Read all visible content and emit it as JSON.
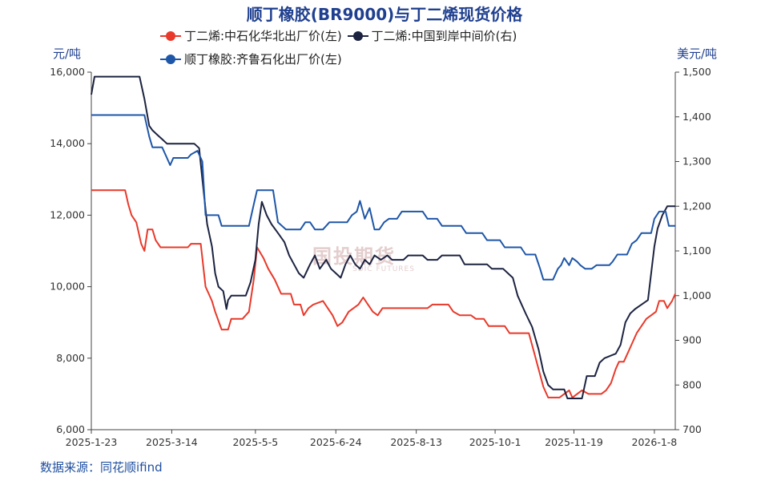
{
  "chart_data": {
    "type": "line",
    "title": "顺丁橡胶(BR9000)与丁二烯现货价格",
    "left_unit": "元/吨",
    "right_unit": "美元/吨",
    "source": "数据来源：同花顺ifind",
    "watermark_cn": "国投期货",
    "watermark_en": "SDIC FUTURES",
    "x_start": "2025-01-23",
    "x_end": "2026-01-21",
    "x_ticks": [
      "2025-1-23",
      "2025-3-14",
      "2025-5-5",
      "2025-6-24",
      "2025-8-13",
      "2025-10-1",
      "2025-11-19",
      "2026-1-8"
    ],
    "y_left": {
      "min": 6000,
      "max": 16000,
      "ticks": [
        "6,000",
        "8,000",
        "10,000",
        "12,000",
        "14,000",
        "16,000"
      ]
    },
    "y_right": {
      "min": 700,
      "max": 1500,
      "ticks": [
        "700",
        "800",
        "900",
        "1,000",
        "1,100",
        "1,200",
        "1,300",
        "1,400",
        "1,500"
      ]
    },
    "series": [
      {
        "name": "丁二烯:中石化华北出厂价(左)",
        "color": "#e8392a",
        "axis": "left",
        "points": [
          [
            "2025-01-23",
            12700
          ],
          [
            "2025-02-13",
            12700
          ],
          [
            "2025-02-15",
            12300
          ],
          [
            "2025-02-17",
            12000
          ],
          [
            "2025-02-20",
            11800
          ],
          [
            "2025-02-23",
            11200
          ],
          [
            "2025-02-25",
            11000
          ],
          [
            "2025-02-27",
            11600
          ],
          [
            "2025-03-02",
            11600
          ],
          [
            "2025-03-04",
            11300
          ],
          [
            "2025-03-07",
            11100
          ],
          [
            "2025-03-24",
            11100
          ],
          [
            "2025-03-26",
            11200
          ],
          [
            "2025-04-01",
            11200
          ],
          [
            "2025-04-04",
            10000
          ],
          [
            "2025-04-08",
            9600
          ],
          [
            "2025-04-10",
            9300
          ],
          [
            "2025-04-14",
            8800
          ],
          [
            "2025-04-18",
            8800
          ],
          [
            "2025-04-20",
            9100
          ],
          [
            "2025-04-27",
            9100
          ],
          [
            "2025-05-01",
            9300
          ],
          [
            "2025-05-04",
            10200
          ],
          [
            "2025-05-06",
            11100
          ],
          [
            "2025-05-10",
            10800
          ],
          [
            "2025-05-13",
            10500
          ],
          [
            "2025-05-17",
            10200
          ],
          [
            "2025-05-21",
            9800
          ],
          [
            "2025-05-27",
            9800
          ],
          [
            "2025-05-29",
            9500
          ],
          [
            "2025-06-02",
            9500
          ],
          [
            "2025-06-04",
            9200
          ],
          [
            "2025-06-07",
            9400
          ],
          [
            "2025-06-10",
            9500
          ],
          [
            "2025-06-16",
            9600
          ],
          [
            "2025-06-19",
            9400
          ],
          [
            "2025-06-22",
            9200
          ],
          [
            "2025-06-25",
            8900
          ],
          [
            "2025-06-28",
            9000
          ],
          [
            "2025-07-02",
            9300
          ],
          [
            "2025-07-05",
            9400
          ],
          [
            "2025-07-08",
            9500
          ],
          [
            "2025-07-11",
            9700
          ],
          [
            "2025-07-14",
            9500
          ],
          [
            "2025-07-17",
            9300
          ],
          [
            "2025-07-20",
            9200
          ],
          [
            "2025-07-23",
            9400
          ],
          [
            "2025-08-20",
            9400
          ],
          [
            "2025-08-23",
            9500
          ],
          [
            "2025-09-02",
            9500
          ],
          [
            "2025-09-05",
            9300
          ],
          [
            "2025-09-09",
            9200
          ],
          [
            "2025-09-16",
            9200
          ],
          [
            "2025-09-19",
            9100
          ],
          [
            "2025-09-24",
            9100
          ],
          [
            "2025-09-27",
            8900
          ],
          [
            "2025-10-07",
            8900
          ],
          [
            "2025-10-10",
            8700
          ],
          [
            "2025-10-15",
            8700
          ],
          [
            "2025-10-22",
            8700
          ],
          [
            "2025-10-25",
            8200
          ],
          [
            "2025-10-28",
            7700
          ],
          [
            "2025-10-31",
            7200
          ],
          [
            "2025-11-03",
            6900
          ],
          [
            "2025-11-10",
            6900
          ],
          [
            "2025-11-13",
            7000
          ],
          [
            "2025-11-16",
            7100
          ],
          [
            "2025-11-18",
            6900
          ],
          [
            "2025-11-21",
            7000
          ],
          [
            "2025-11-24",
            7100
          ],
          [
            "2025-11-28",
            7000
          ],
          [
            "2025-12-06",
            7000
          ],
          [
            "2025-12-09",
            7100
          ],
          [
            "2025-12-12",
            7300
          ],
          [
            "2025-12-15",
            7700
          ],
          [
            "2025-12-17",
            7900
          ],
          [
            "2025-12-20",
            7900
          ],
          [
            "2025-12-23",
            8200
          ],
          [
            "2025-12-25",
            8400
          ],
          [
            "2025-12-28",
            8700
          ],
          [
            "2025-12-31",
            8900
          ],
          [
            "2026-01-03",
            9100
          ],
          [
            "2026-01-06",
            9200
          ],
          [
            "2026-01-09",
            9300
          ],
          [
            "2026-01-11",
            9600
          ],
          [
            "2026-01-14",
            9600
          ],
          [
            "2026-01-16",
            9400
          ],
          [
            "2026-01-19",
            9600
          ],
          [
            "2026-01-21",
            9800
          ]
        ]
      },
      {
        "name": "丁二烯:中国到岸中间价(右)",
        "color": "#1c2340",
        "axis": "right",
        "points": [
          [
            "2025-01-23",
            1450
          ],
          [
            "2025-01-25",
            1490
          ],
          [
            "2025-02-22",
            1490
          ],
          [
            "2025-02-25",
            1440
          ],
          [
            "2025-02-28",
            1380
          ],
          [
            "2025-03-02",
            1370
          ],
          [
            "2025-03-05",
            1360
          ],
          [
            "2025-03-08",
            1350
          ],
          [
            "2025-03-11",
            1340
          ],
          [
            "2025-03-28",
            1340
          ],
          [
            "2025-03-31",
            1330
          ],
          [
            "2025-04-02",
            1260
          ],
          [
            "2025-04-05",
            1160
          ],
          [
            "2025-04-08",
            1110
          ],
          [
            "2025-04-10",
            1050
          ],
          [
            "2025-04-12",
            1020
          ],
          [
            "2025-04-15",
            1010
          ],
          [
            "2025-04-17",
            970
          ],
          [
            "2025-04-18",
            990
          ],
          [
            "2025-04-20",
            1000
          ],
          [
            "2025-04-29",
            1000
          ],
          [
            "2025-05-02",
            1030
          ],
          [
            "2025-05-05",
            1080
          ],
          [
            "2025-05-07",
            1160
          ],
          [
            "2025-05-09",
            1210
          ],
          [
            "2025-05-12",
            1180
          ],
          [
            "2025-05-15",
            1160
          ],
          [
            "2025-05-19",
            1140
          ],
          [
            "2025-05-23",
            1120
          ],
          [
            "2025-05-26",
            1090
          ],
          [
            "2025-05-29",
            1070
          ],
          [
            "2025-06-01",
            1050
          ],
          [
            "2025-06-04",
            1040
          ],
          [
            "2025-06-08",
            1070
          ],
          [
            "2025-06-11",
            1090
          ],
          [
            "2025-06-14",
            1060
          ],
          [
            "2025-06-18",
            1080
          ],
          [
            "2025-06-21",
            1060
          ],
          [
            "2025-06-24",
            1050
          ],
          [
            "2025-06-27",
            1040
          ],
          [
            "2025-06-30",
            1070
          ],
          [
            "2025-07-03",
            1090
          ],
          [
            "2025-07-06",
            1070
          ],
          [
            "2025-07-09",
            1060
          ],
          [
            "2025-07-12",
            1080
          ],
          [
            "2025-07-15",
            1070
          ],
          [
            "2025-07-18",
            1090
          ],
          [
            "2025-07-22",
            1080
          ],
          [
            "2025-07-26",
            1090
          ],
          [
            "2025-07-29",
            1080
          ],
          [
            "2025-08-05",
            1080
          ],
          [
            "2025-08-08",
            1090
          ],
          [
            "2025-08-17",
            1090
          ],
          [
            "2025-08-20",
            1080
          ],
          [
            "2025-08-26",
            1080
          ],
          [
            "2025-08-29",
            1090
          ],
          [
            "2025-09-09",
            1090
          ],
          [
            "2025-09-12",
            1070
          ],
          [
            "2025-09-26",
            1070
          ],
          [
            "2025-09-29",
            1060
          ],
          [
            "2025-10-06",
            1060
          ],
          [
            "2025-10-09",
            1050
          ],
          [
            "2025-10-12",
            1040
          ],
          [
            "2025-10-15",
            1000
          ],
          [
            "2025-10-20",
            960
          ],
          [
            "2025-10-24",
            930
          ],
          [
            "2025-10-28",
            880
          ],
          [
            "2025-10-31",
            830
          ],
          [
            "2025-11-03",
            800
          ],
          [
            "2025-11-06",
            790
          ],
          [
            "2025-11-13",
            790
          ],
          [
            "2025-11-15",
            770
          ],
          [
            "2025-11-24",
            770
          ],
          [
            "2025-11-27",
            820
          ],
          [
            "2025-12-02",
            820
          ],
          [
            "2025-12-05",
            850
          ],
          [
            "2025-12-08",
            860
          ],
          [
            "2025-12-15",
            870
          ],
          [
            "2025-12-18",
            890
          ],
          [
            "2025-12-21",
            940
          ],
          [
            "2025-12-24",
            960
          ],
          [
            "2025-12-27",
            970
          ],
          [
            "2025-12-31",
            980
          ],
          [
            "2026-01-04",
            990
          ],
          [
            "2026-01-06",
            1050
          ],
          [
            "2026-01-08",
            1110
          ],
          [
            "2026-01-10",
            1150
          ],
          [
            "2026-01-13",
            1180
          ],
          [
            "2026-01-16",
            1200
          ],
          [
            "2026-01-21",
            1200
          ]
        ]
      },
      {
        "name": "顺丁橡胶:齐鲁石化出厂价(左)",
        "color": "#1e56a8",
        "axis": "left",
        "points": [
          [
            "2025-01-23",
            14800
          ],
          [
            "2025-02-25",
            14800
          ],
          [
            "2025-02-28",
            14200
          ],
          [
            "2025-03-02",
            13900
          ],
          [
            "2025-03-08",
            13900
          ],
          [
            "2025-03-11",
            13600
          ],
          [
            "2025-03-13",
            13400
          ],
          [
            "2025-03-15",
            13600
          ],
          [
            "2025-03-24",
            13600
          ],
          [
            "2025-03-26",
            13700
          ],
          [
            "2025-03-30",
            13800
          ],
          [
            "2025-04-02",
            13500
          ],
          [
            "2025-04-04",
            12000
          ],
          [
            "2025-04-12",
            12000
          ],
          [
            "2025-04-14",
            11700
          ],
          [
            "2025-05-01",
            11700
          ],
          [
            "2025-05-04",
            12300
          ],
          [
            "2025-05-06",
            12700
          ],
          [
            "2025-05-16",
            12700
          ],
          [
            "2025-05-19",
            11800
          ],
          [
            "2025-05-24",
            11600
          ],
          [
            "2025-06-02",
            11600
          ],
          [
            "2025-06-05",
            11800
          ],
          [
            "2025-06-08",
            11800
          ],
          [
            "2025-06-11",
            11600
          ],
          [
            "2025-06-16",
            11600
          ],
          [
            "2025-06-20",
            11800
          ],
          [
            "2025-07-01",
            11800
          ],
          [
            "2025-07-04",
            12000
          ],
          [
            "2025-07-07",
            12100
          ],
          [
            "2025-07-09",
            12400
          ],
          [
            "2025-07-12",
            11900
          ],
          [
            "2025-07-15",
            12200
          ],
          [
            "2025-07-18",
            11600
          ],
          [
            "2025-07-21",
            11600
          ],
          [
            "2025-07-24",
            11800
          ],
          [
            "2025-07-27",
            11900
          ],
          [
            "2025-08-01",
            11900
          ],
          [
            "2025-08-04",
            12100
          ],
          [
            "2025-08-17",
            12100
          ],
          [
            "2025-08-20",
            11900
          ],
          [
            "2025-08-26",
            11900
          ],
          [
            "2025-08-29",
            11700
          ],
          [
            "2025-09-10",
            11700
          ],
          [
            "2025-09-13",
            11500
          ],
          [
            "2025-09-23",
            11500
          ],
          [
            "2025-09-26",
            11300
          ],
          [
            "2025-10-04",
            11300
          ],
          [
            "2025-10-07",
            11100
          ],
          [
            "2025-10-17",
            11100
          ],
          [
            "2025-10-20",
            10900
          ],
          [
            "2025-10-26",
            10900
          ],
          [
            "2025-10-29",
            10500
          ],
          [
            "2025-10-31",
            10200
          ],
          [
            "2025-11-06",
            10200
          ],
          [
            "2025-11-09",
            10500
          ],
          [
            "2025-11-11",
            10600
          ],
          [
            "2025-11-13",
            10800
          ],
          [
            "2025-11-16",
            10600
          ],
          [
            "2025-11-18",
            10800
          ],
          [
            "2025-11-21",
            10700
          ],
          [
            "2025-11-23",
            10600
          ],
          [
            "2025-11-26",
            10500
          ],
          [
            "2025-11-30",
            10500
          ],
          [
            "2025-12-03",
            10600
          ],
          [
            "2025-12-08",
            10600
          ],
          [
            "2025-12-11",
            10600
          ],
          [
            "2025-12-13",
            10700
          ],
          [
            "2025-12-16",
            10900
          ],
          [
            "2025-12-22",
            10900
          ],
          [
            "2025-12-25",
            11200
          ],
          [
            "2025-12-28",
            11300
          ],
          [
            "2025-12-31",
            11500
          ],
          [
            "2026-01-06",
            11500
          ],
          [
            "2026-01-08",
            11900
          ],
          [
            "2026-01-11",
            12100
          ],
          [
            "2026-01-15",
            12100
          ],
          [
            "2026-01-17",
            11700
          ],
          [
            "2026-01-21",
            11700
          ]
        ]
      }
    ],
    "legend_position": "top",
    "grid": false
  }
}
